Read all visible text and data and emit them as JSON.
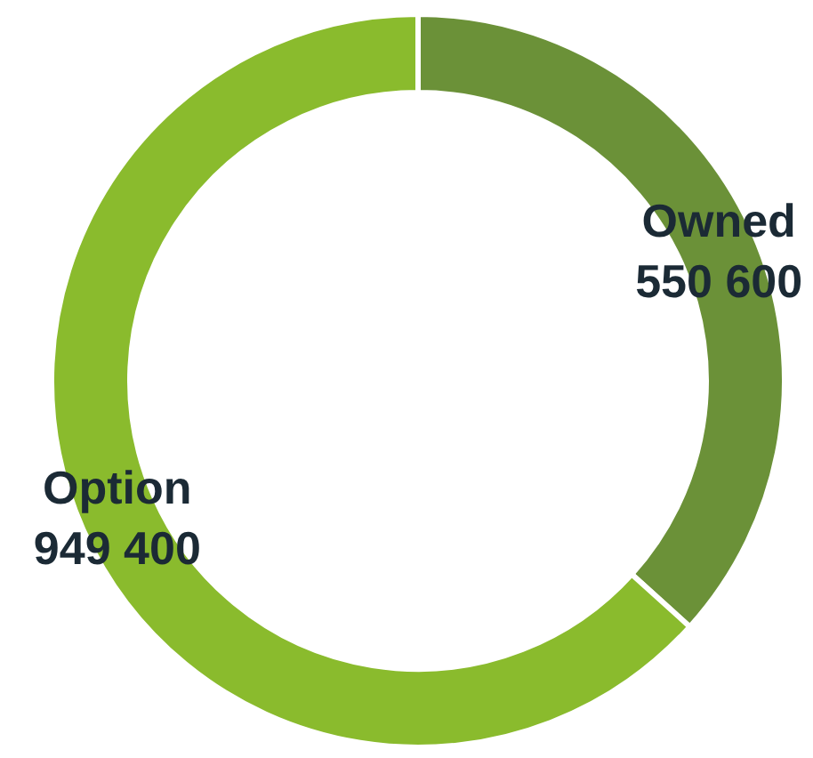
{
  "chart_data": {
    "type": "donut",
    "categories": [
      "Owned",
      "Option"
    ],
    "values": [
      550600,
      949400
    ],
    "colors": [
      "#6b9138",
      "#8abb2d"
    ],
    "value_labels": [
      "550 600",
      "949 400"
    ],
    "legend": false
  }
}
